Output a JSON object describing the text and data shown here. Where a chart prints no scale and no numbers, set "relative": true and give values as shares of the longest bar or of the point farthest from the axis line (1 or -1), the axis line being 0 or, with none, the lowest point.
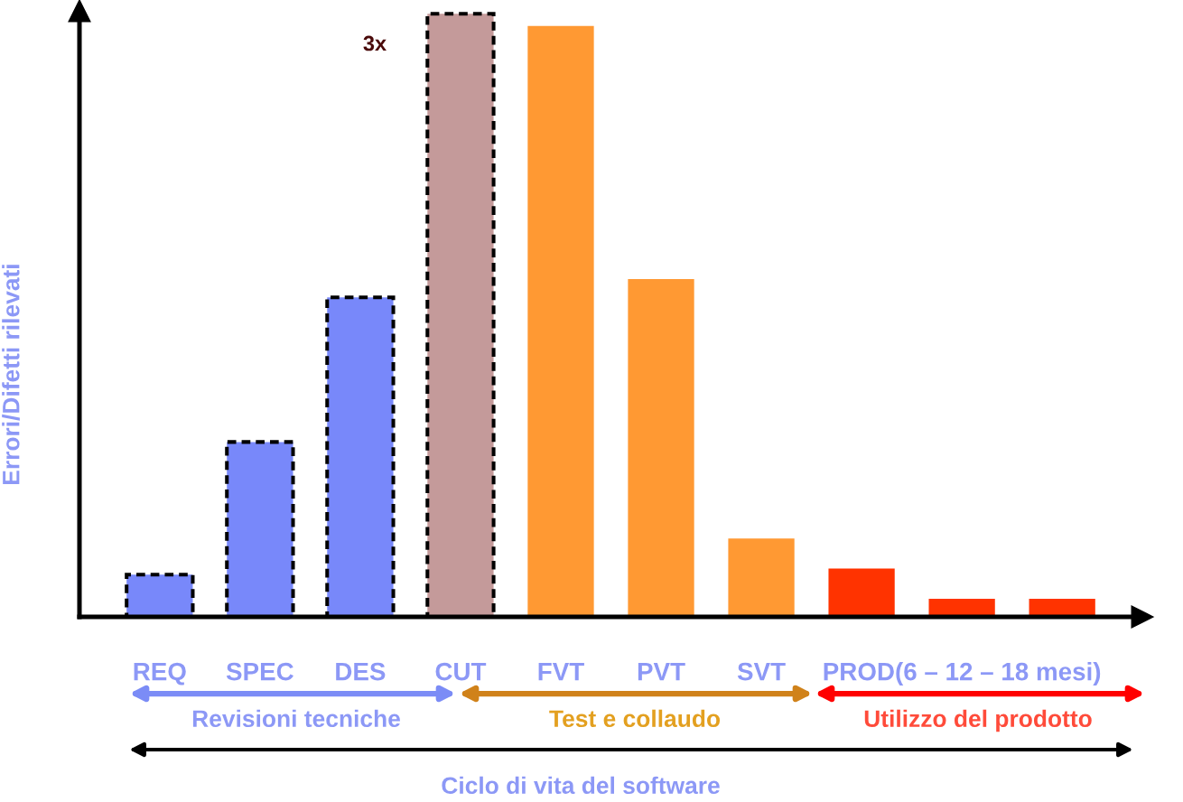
{
  "chart_data": {
    "type": "bar",
    "relative": true,
    "ylabel": "Errori/Difetti rilevati",
    "categories": [
      "REQ",
      "SPEC",
      "DES",
      "CUT",
      "FVT",
      "PVT",
      "SVT",
      null,
      "PROD(6 – 12 – 18 mesi)",
      null
    ],
    "series": [
      {
        "line_style": "dashed",
        "colors": [
          "#7888fa",
          "#7888fa",
          "#7888fa",
          "#c49a9a",
          null,
          null,
          null,
          null,
          null,
          null
        ],
        "values": [
          0.07,
          0.29,
          0.53,
          1,
          null,
          null,
          null,
          null,
          null,
          null
        ]
      },
      {
        "colors": [
          null,
          null,
          null,
          null,
          "#ff9933",
          "#ff9933",
          "#ff9933",
          "#ff3300",
          "#ff3300",
          "#ff3300"
        ],
        "values": [
          null,
          null,
          null,
          null,
          0.98,
          0.56,
          0.13,
          0.08,
          0.03,
          0.03
        ]
      }
    ],
    "annotations": [
      "3x",
      "Revisioni tecniche",
      "Test e collaudo",
      "Utilizzo del prodotto",
      "Ciclo di vita del software"
    ]
  }
}
